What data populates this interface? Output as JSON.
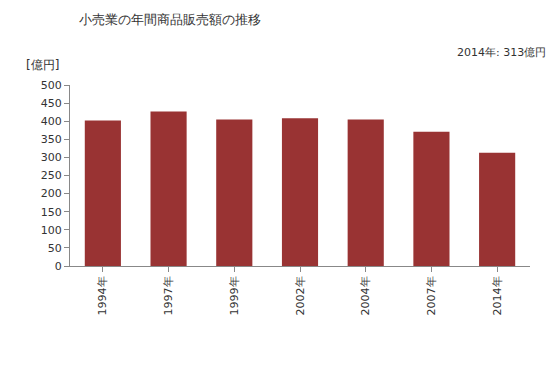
{
  "chart_data": {
    "type": "bar",
    "title": "小売業の年間商品販売額の推移",
    "y_label": "[億円]",
    "annotations": [
      "2014年: 313億円"
    ],
    "categories": [
      "1994年",
      "1997年",
      "1999年",
      "2002年",
      "2004年",
      "2007年",
      "2014年"
    ],
    "values": [
      402,
      427,
      405,
      408,
      405,
      371,
      313
    ],
    "color": "#993333",
    "ylim": [
      0,
      500
    ],
    "yticks": [
      0,
      50,
      100,
      150,
      200,
      250,
      300,
      350,
      400,
      450,
      500
    ],
    "grid": false
  }
}
